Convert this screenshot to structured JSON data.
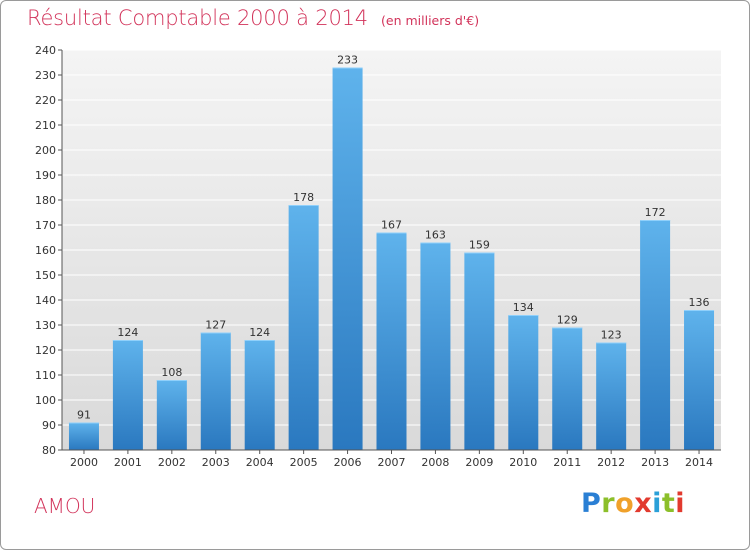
{
  "header": {
    "title": "Résultat Comptable 2000 à 2014",
    "subtitle": "(en milliers d'€)"
  },
  "footer": {
    "commune": "AMOU",
    "logo": "Proxiti"
  },
  "colors": {
    "title": "#d2335a",
    "bar_top": "#5fb3ec",
    "bar_bottom": "#2a78bf",
    "plot_bg_top": "#f4f4f4",
    "plot_bg_bottom": "#d9d9d9",
    "grid": "#ffffff"
  },
  "chart_data": {
    "type": "bar",
    "title": "Résultat Comptable 2000 à 2014",
    "subtitle": "(en milliers d'€)",
    "xlabel": "",
    "ylabel": "",
    "categories": [
      "2000",
      "2001",
      "2002",
      "2003",
      "2004",
      "2005",
      "2006",
      "2007",
      "2008",
      "2009",
      "2010",
      "2011",
      "2012",
      "2013",
      "2014"
    ],
    "values": [
      91,
      124,
      108,
      127,
      124,
      178,
      233,
      167,
      163,
      159,
      134,
      129,
      123,
      172,
      136
    ],
    "ylim": [
      80,
      240
    ],
    "yticks": [
      80,
      90,
      100,
      110,
      120,
      130,
      140,
      150,
      160,
      170,
      180,
      190,
      200,
      210,
      220,
      230,
      240
    ],
    "grid": true,
    "data_labels": true
  }
}
